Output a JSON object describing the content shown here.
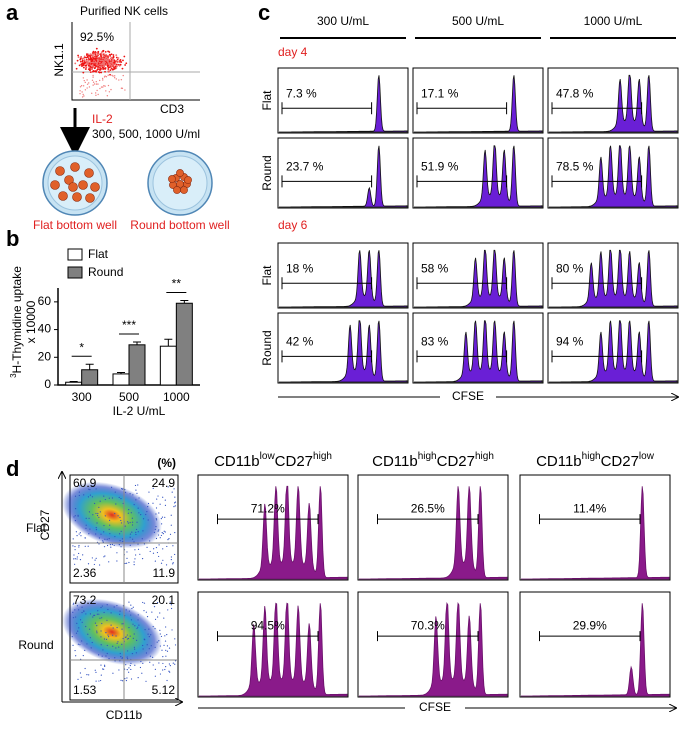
{
  "panel_labels": [
    "a",
    "b",
    "c",
    "d"
  ],
  "a": {
    "title": "Purified NK cells",
    "gate": "92.5%",
    "y_label": "NK1.1",
    "x_label": "CD3",
    "treatment": "IL-2",
    "doses": "300, 500, 1000 U/ml",
    "wells": [
      "Flat bottom well",
      "Round bottom well"
    ]
  },
  "b": {
    "type": "bar",
    "y_label_sup": "3",
    "y_label": "H-Thymidine uptake",
    "y_label2": "x 10000",
    "x_label": "IL-2 U/mL",
    "categories": [
      "300",
      "500",
      "1000"
    ],
    "series": [
      {
        "name": "Flat",
        "color": "#ffffff",
        "values": [
          2,
          8,
          28
        ],
        "errors": [
          0.5,
          1,
          5
        ]
      },
      {
        "name": "Round",
        "color": "#808080",
        "values": [
          11,
          29,
          59
        ],
        "errors": [
          4,
          2,
          2
        ]
      }
    ],
    "ylim": [
      0,
      70
    ],
    "yticks": [
      0,
      20,
      40,
      60
    ],
    "significance": [
      "*",
      "***",
      "**"
    ]
  },
  "c": {
    "columns": [
      "300 U/mL",
      "500 U/mL",
      "1000 U/mL"
    ],
    "days": [
      "day 4",
      "day 6"
    ],
    "rows": [
      "Flat",
      "Round"
    ],
    "percents": [
      [
        [
          "7.3 %",
          "17.1 %",
          "47.8 %"
        ],
        [
          "23.7 %",
          "51.9 %",
          "78.5 %"
        ]
      ],
      [
        [
          "18 %",
          "58 %",
          "80 %"
        ],
        [
          "42 %",
          "83 %",
          "94 %"
        ]
      ]
    ],
    "x_label": "CFSE"
  },
  "d": {
    "unit": "(%)",
    "y_label": "CD27",
    "x_label": "CD11b",
    "rows": [
      "Flat",
      "Round"
    ],
    "quadrants": [
      [
        "60.9",
        "24.9",
        "2.36",
        "11.9"
      ],
      [
        "73.2",
        "20.1",
        "1.53",
        "5.12"
      ]
    ],
    "headers": [
      [
        "CD11b",
        "low",
        "CD27",
        "high"
      ],
      [
        "CD11b",
        "high",
        "CD27",
        "high"
      ],
      [
        "CD11b",
        "high",
        "CD27",
        "low"
      ]
    ],
    "percents": [
      [
        "71.2%",
        "26.5%",
        "11.4%"
      ],
      [
        "94.5%",
        "70.3%",
        "29.9%"
      ]
    ],
    "hist_label": "CFSE"
  }
}
